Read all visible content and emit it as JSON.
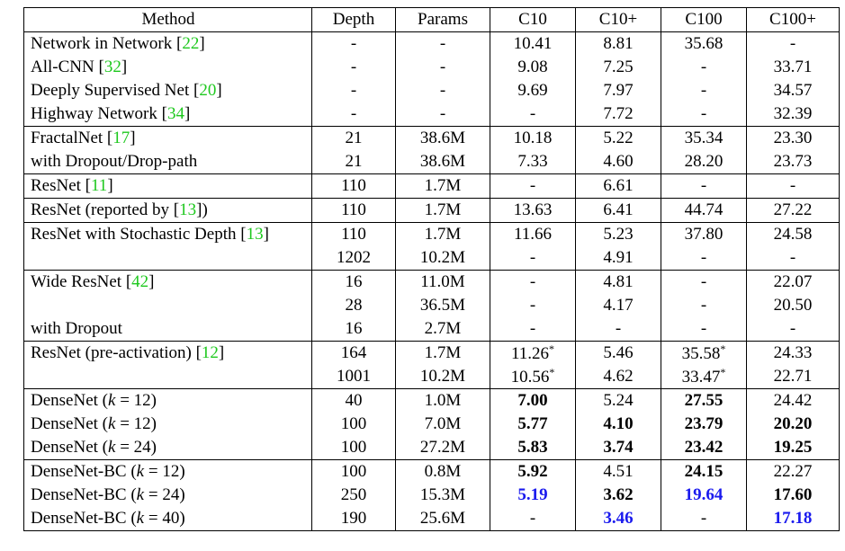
{
  "table": {
    "header": [
      "Method",
      "Depth",
      "Params",
      "C10",
      "C10+",
      "C100",
      "C100+"
    ],
    "groups": [
      [
        [
          [
            "Network in Network [",
            {
              "text": "22",
              "style": "cite"
            },
            "]"
          ],
          "-",
          "-",
          "10.41",
          "8.81",
          "35.68",
          "-"
        ],
        [
          [
            "All-CNN [",
            {
              "text": "32",
              "style": "cite"
            },
            "]"
          ],
          "-",
          "-",
          "9.08",
          "7.25",
          "-",
          "33.71"
        ],
        [
          [
            "Deeply Supervised Net [",
            {
              "text": "20",
              "style": "cite"
            },
            "]"
          ],
          "-",
          "-",
          "9.69",
          "7.97",
          "-",
          "34.57"
        ],
        [
          [
            "Highway Network [",
            {
              "text": "34",
              "style": "cite"
            },
            "]"
          ],
          "-",
          "-",
          "-",
          "7.72",
          "-",
          "32.39"
        ]
      ],
      [
        [
          [
            "FractalNet [",
            {
              "text": "17",
              "style": "cite"
            },
            "]"
          ],
          "21",
          "38.6M",
          "10.18",
          "5.22",
          "35.34",
          "23.30"
        ],
        [
          "with Dropout/Drop-path",
          "21",
          "38.6M",
          "7.33",
          "4.60",
          "28.20",
          "23.73"
        ]
      ],
      [
        [
          [
            "ResNet [",
            {
              "text": "11",
              "style": "cite"
            },
            "]"
          ],
          "110",
          "1.7M",
          "-",
          "6.61",
          "-",
          "-"
        ]
      ],
      [
        [
          [
            "ResNet (reported by [",
            {
              "text": "13",
              "style": "cite"
            },
            "])"
          ],
          "110",
          "1.7M",
          "13.63",
          "6.41",
          "44.74",
          "27.22"
        ]
      ],
      [
        [
          [
            "ResNet with Stochastic Depth [",
            {
              "text": "13",
              "style": "cite"
            },
            "]"
          ],
          "110",
          "1.7M",
          "11.66",
          "5.23",
          "37.80",
          "24.58"
        ],
        [
          null,
          "1202",
          "10.2M",
          "-",
          "4.91",
          "-",
          "-"
        ]
      ],
      [
        [
          [
            "Wide ResNet [",
            {
              "text": "42",
              "style": "cite"
            },
            "]"
          ],
          "16",
          "11.0M",
          "-",
          "4.81",
          "-",
          "22.07"
        ],
        [
          null,
          "28",
          "36.5M",
          "-",
          "4.17",
          "-",
          "20.50"
        ],
        [
          "with Dropout",
          "16",
          "2.7M",
          "-",
          "-",
          "-",
          "-"
        ]
      ],
      [
        [
          [
            "ResNet (pre-activation) [",
            {
              "text": "12",
              "style": "cite"
            },
            "]"
          ],
          "164",
          "1.7M",
          [
            "11.26",
            {
              "text": "*",
              "style": "sup"
            }
          ],
          "5.46",
          [
            "35.58",
            {
              "text": "*",
              "style": "sup"
            }
          ],
          "24.33"
        ],
        [
          null,
          "1001",
          "10.2M",
          [
            "10.56",
            {
              "text": "*",
              "style": "sup"
            }
          ],
          "4.62",
          [
            "33.47",
            {
              "text": "*",
              "style": "sup"
            }
          ],
          "22.71"
        ]
      ],
      [
        [
          [
            "DenseNet (",
            {
              "text": "k",
              "style": "it"
            },
            " = 12)"
          ],
          "40",
          "1.0M",
          [
            {
              "text": "7.00",
              "style": "bold"
            }
          ],
          "5.24",
          [
            {
              "text": "27.55",
              "style": "bold"
            }
          ],
          "24.42"
        ],
        [
          [
            "DenseNet (",
            {
              "text": "k",
              "style": "it"
            },
            " = 12)"
          ],
          "100",
          "7.0M",
          [
            {
              "text": "5.77",
              "style": "bold"
            }
          ],
          [
            {
              "text": "4.10",
              "style": "bold"
            }
          ],
          [
            {
              "text": "23.79",
              "style": "bold"
            }
          ],
          [
            {
              "text": "20.20",
              "style": "bold"
            }
          ]
        ],
        [
          [
            "DenseNet (",
            {
              "text": "k",
              "style": "it"
            },
            " = 24)"
          ],
          "100",
          "27.2M",
          [
            {
              "text": "5.83",
              "style": "bold"
            }
          ],
          [
            {
              "text": "3.74",
              "style": "bold"
            }
          ],
          [
            {
              "text": "23.42",
              "style": "bold"
            }
          ],
          [
            {
              "text": "19.25",
              "style": "bold"
            }
          ]
        ]
      ],
      [
        [
          [
            "DenseNet-BC (",
            {
              "text": "k",
              "style": "it"
            },
            " = 12)"
          ],
          "100",
          "0.8M",
          [
            {
              "text": "5.92",
              "style": "bold"
            }
          ],
          "4.51",
          [
            {
              "text": "24.15",
              "style": "bold"
            }
          ],
          "22.27"
        ],
        [
          [
            "DenseNet-BC (",
            {
              "text": "k",
              "style": "it"
            },
            " = 24)"
          ],
          "250",
          "15.3M",
          [
            {
              "text": "5.19",
              "style": "best"
            }
          ],
          [
            {
              "text": "3.62",
              "style": "bold"
            }
          ],
          [
            {
              "text": "19.64",
              "style": "best"
            }
          ],
          [
            {
              "text": "17.60",
              "style": "bold"
            }
          ]
        ],
        [
          [
            "DenseNet-BC (",
            {
              "text": "k",
              "style": "it"
            },
            " = 40)"
          ],
          "190",
          "25.6M",
          "-",
          [
            {
              "text": "3.46",
              "style": "best"
            }
          ],
          "-",
          [
            {
              "text": "17.18",
              "style": "best"
            }
          ]
        ]
      ]
    ]
  }
}
